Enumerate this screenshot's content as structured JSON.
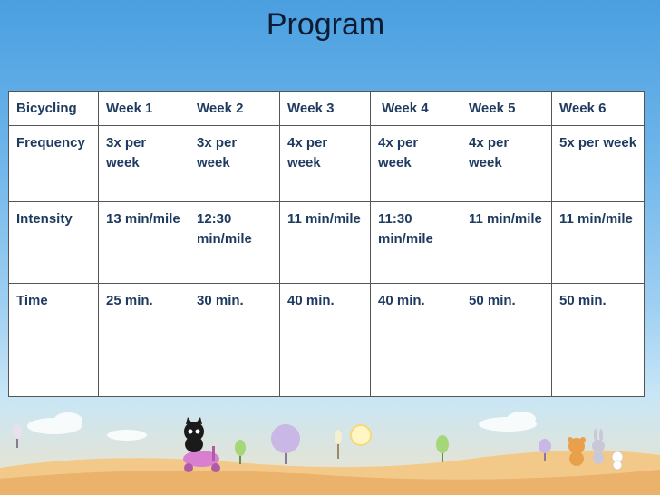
{
  "slide": {
    "title": "Program"
  },
  "table": {
    "header": [
      "Bicycling",
      "Week 1",
      "Week 2",
      "Week 3",
      " Week 4",
      "Week 5",
      "Week 6"
    ],
    "rows": [
      {
        "label": "Frequency",
        "cells": [
          "3x per week",
          "3x per week",
          "4x per week",
          "4x per week",
          "4x per week",
          "5x per week"
        ]
      },
      {
        "label": "Intensity",
        "cells": [
          "13 min/mile",
          "12:30 min/mile",
          "11 min/mile",
          "11:30 min/mile",
          "11 min/mile",
          "11 min/mile"
        ]
      },
      {
        "label": "Time",
        "cells": [
          "25 min.",
          "30 min.",
          "40 min.",
          "40 min.",
          "50 min.",
          "50 min."
        ]
      }
    ]
  },
  "colors": {
    "sky_top": "#4a9fe0",
    "sky_bottom": "#c8e6f7",
    "ground": "#f0c27a",
    "table_text": "#1e3a5f"
  },
  "illustration": {
    "elements": [
      "cat-on-scooter-icon",
      "bear-icon",
      "rabbit-icon",
      "small-rabbit-icon",
      "tree-icon",
      "sun-icon",
      "cloud-icon"
    ]
  }
}
